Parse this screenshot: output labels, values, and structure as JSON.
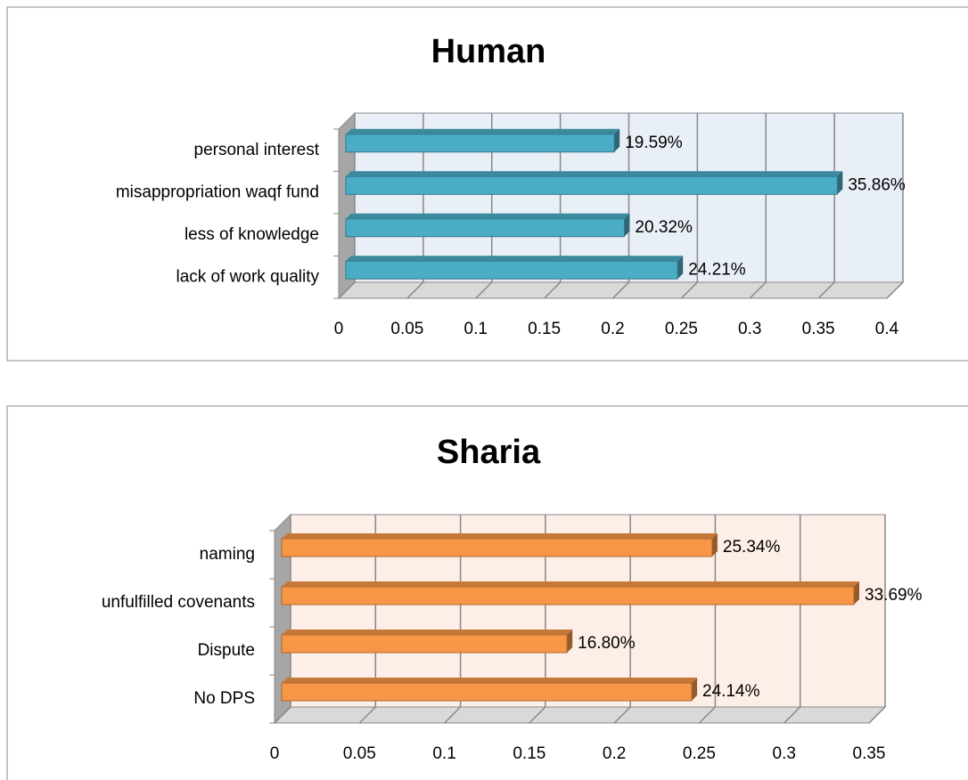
{
  "chart_data": [
    {
      "type": "bar",
      "title": "Human",
      "categories": [
        "personal interest",
        "misappropriation waqf fund",
        "less of knowledge",
        "lack of work quality"
      ],
      "values": [
        0.1959,
        0.3586,
        0.2032,
        0.2421
      ],
      "value_labels": [
        "19.59%",
        "35.86%",
        "20.32%",
        "24.21%"
      ],
      "color": "#4bacc6",
      "wall_color": "#e9eff6",
      "xlim": [
        0,
        0.4
      ],
      "xticks": [
        0,
        0.05,
        0.1,
        0.15,
        0.2,
        0.25,
        0.3,
        0.35,
        0.4
      ],
      "grid": true
    },
    {
      "type": "bar",
      "title": "Sharia",
      "categories": [
        "naming",
        "unfulfilled covenants",
        "Dispute",
        "No DPS"
      ],
      "values": [
        0.2534,
        0.3369,
        0.168,
        0.2414
      ],
      "value_labels": [
        "25.34%",
        "33.69%",
        "16.80%",
        "24.14%"
      ],
      "color": "#f79646",
      "wall_color": "#fdeee7",
      "xlim": [
        0,
        0.35
      ],
      "xticks": [
        0,
        0.05,
        0.1,
        0.15,
        0.2,
        0.25,
        0.3,
        0.35
      ],
      "grid": true
    }
  ]
}
